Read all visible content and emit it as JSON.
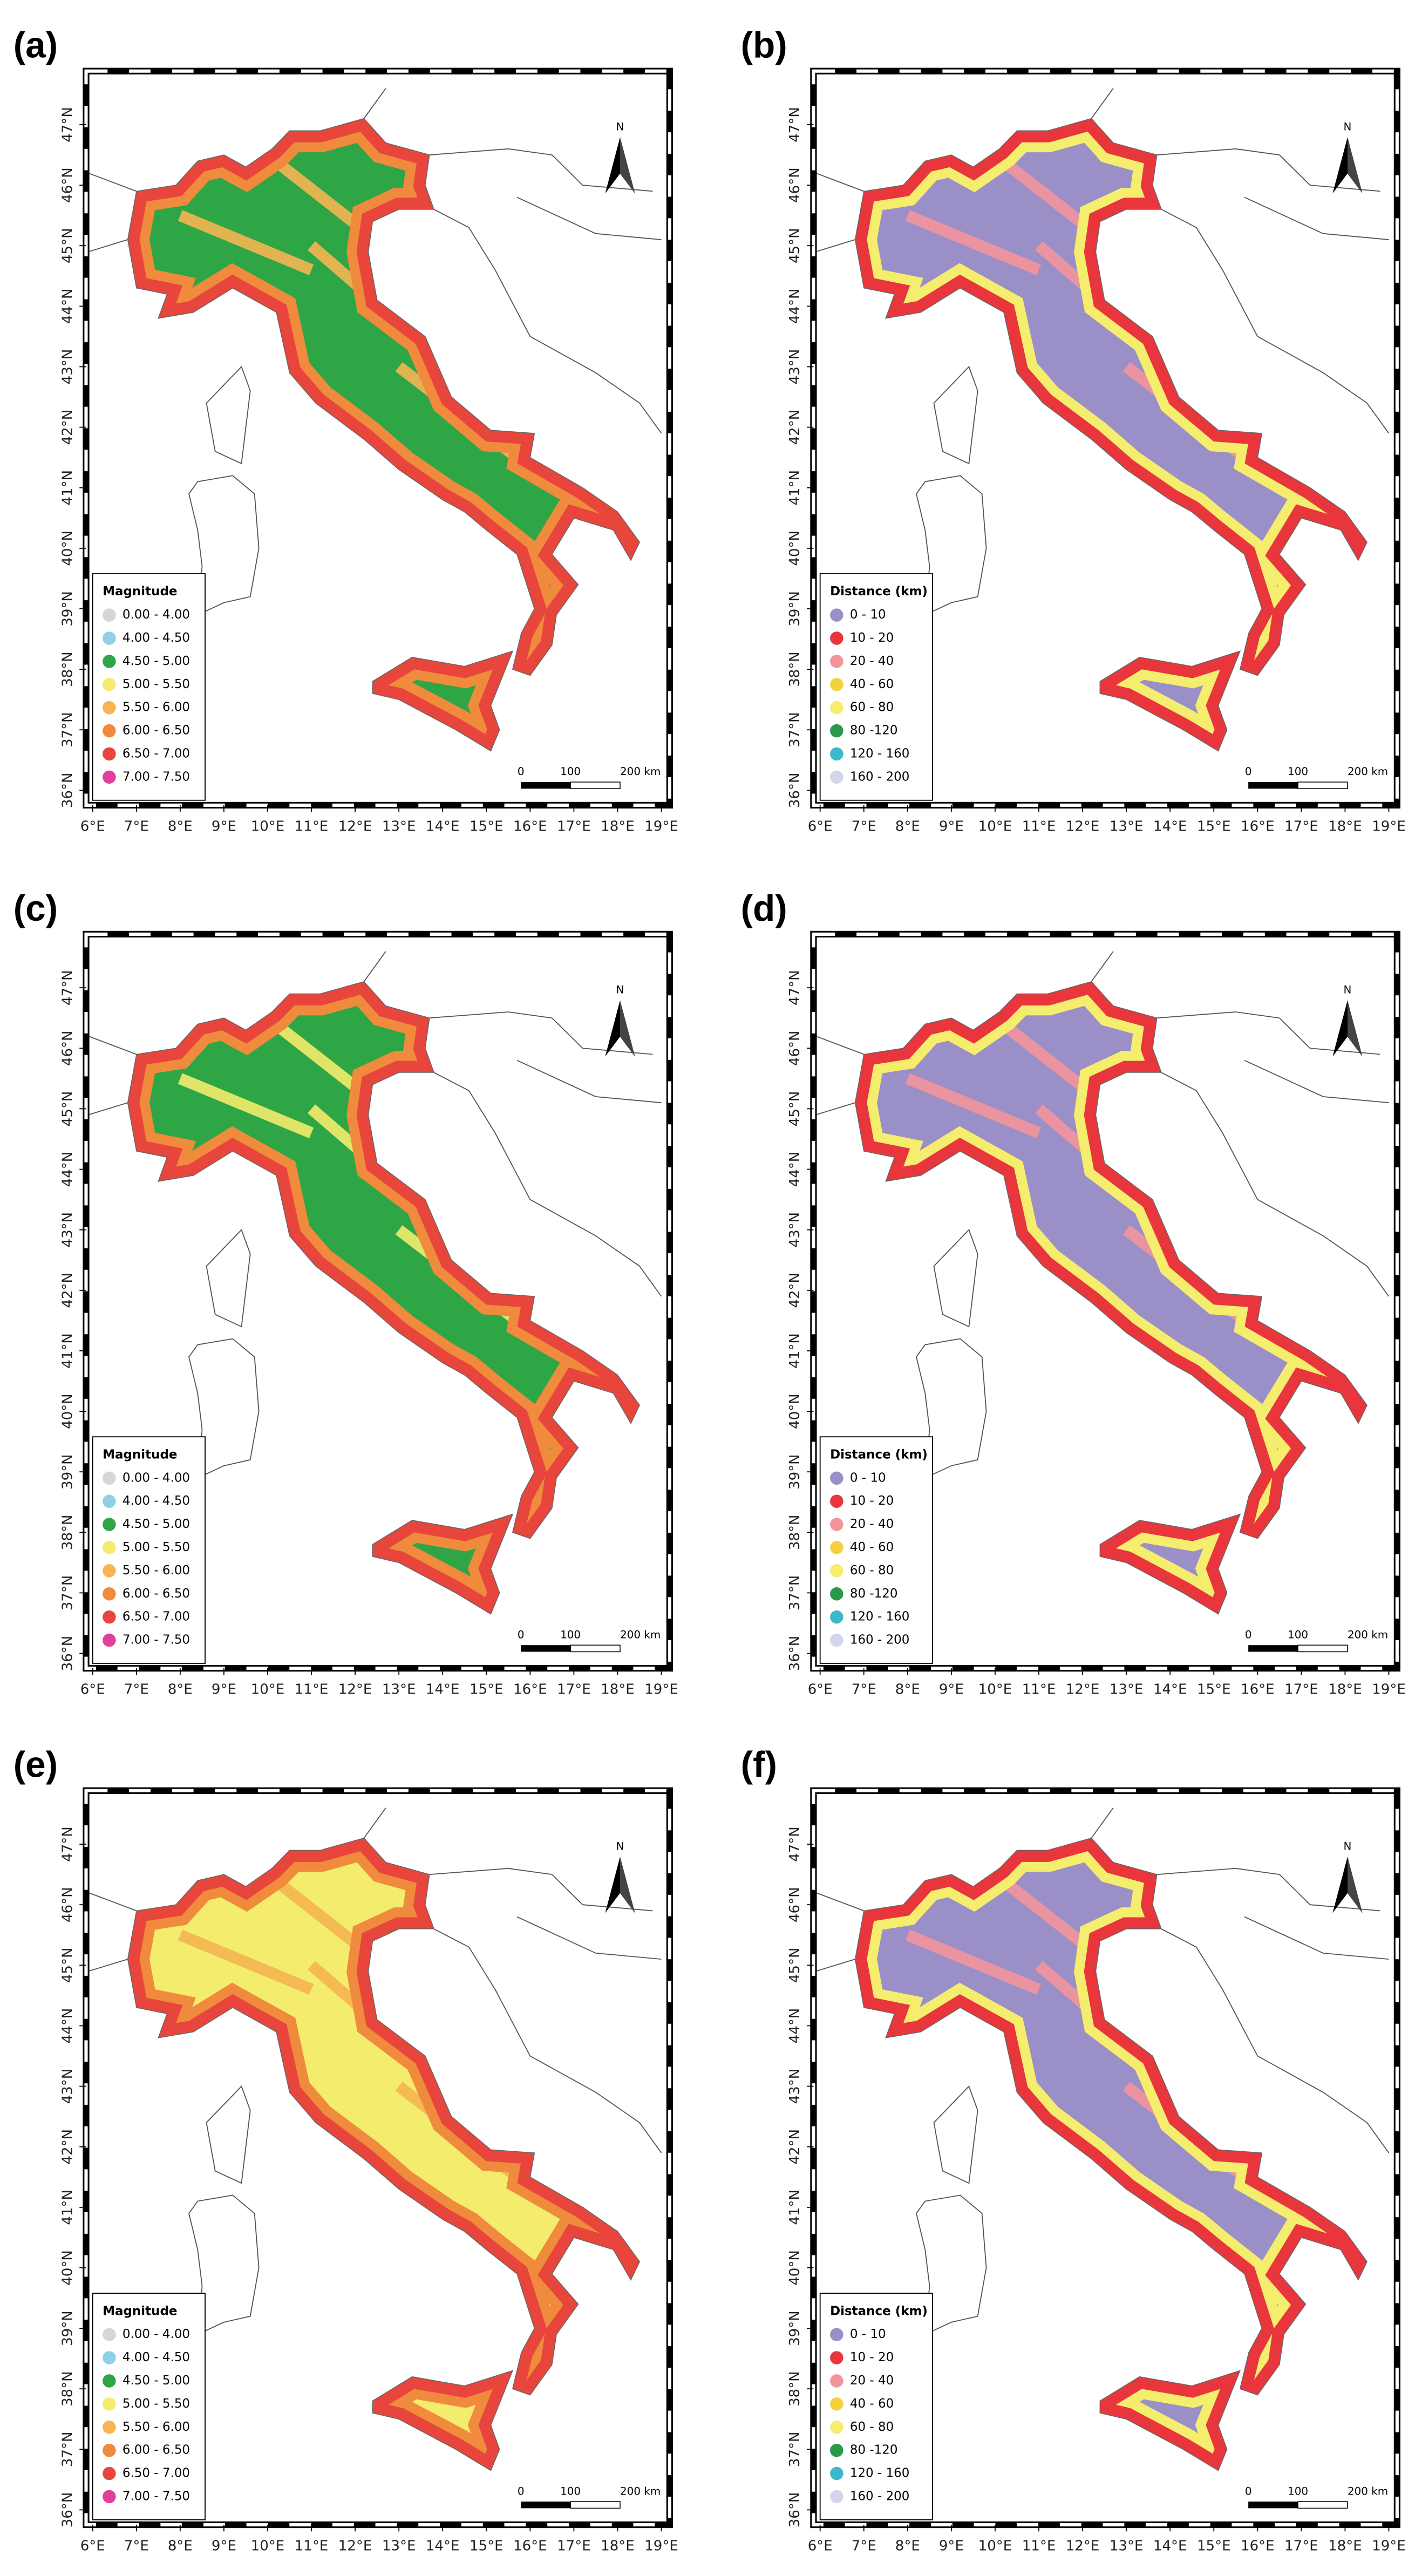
{
  "axes": {
    "lon_ticks": [
      {
        "value": 6,
        "label": "6°E"
      },
      {
        "value": 7,
        "label": "7°E"
      },
      {
        "value": 8,
        "label": "8°E"
      },
      {
        "value": 9,
        "label": "9°E"
      },
      {
        "value": 10,
        "label": "10°E"
      },
      {
        "value": 11,
        "label": "11°E"
      },
      {
        "value": 12,
        "label": "12°E"
      },
      {
        "value": 13,
        "label": "13°E"
      },
      {
        "value": 14,
        "label": "14°E"
      },
      {
        "value": 15,
        "label": "15°E"
      },
      {
        "value": 16,
        "label": "16°E"
      },
      {
        "value": 17,
        "label": "17°E"
      },
      {
        "value": 18,
        "label": "18°E"
      },
      {
        "value": 19,
        "label": "19°E"
      }
    ],
    "lat_ticks": [
      {
        "value": 36,
        "label": "36°N"
      },
      {
        "value": 37,
        "label": "37°N"
      },
      {
        "value": 38,
        "label": "38°N"
      },
      {
        "value": 39,
        "label": "39°N"
      },
      {
        "value": 40,
        "label": "40°N"
      },
      {
        "value": 41,
        "label": "41°N"
      },
      {
        "value": 42,
        "label": "42°N"
      },
      {
        "value": 43,
        "label": "43°N"
      },
      {
        "value": 44,
        "label": "44°N"
      },
      {
        "value": 45,
        "label": "45°N"
      },
      {
        "value": 46,
        "label": "46°N"
      },
      {
        "value": 47,
        "label": "47°N"
      }
    ]
  },
  "north": "N",
  "scale_bar": [
    0,
    100,
    {
      "value": 200,
      "label": "200 km"
    }
  ],
  "panels": [
    {
      "label": "(a)",
      "legend": {
        "title": "Magnitude",
        "items": [
          {
            "label": "0.00 - 4.00",
            "color": "#d6d6d6"
          },
          {
            "label": "4.00 - 4.50",
            "color": "#8fd0e6"
          },
          {
            "label": "4.50 - 5.00",
            "color": "#2ea645"
          },
          {
            "label": "5.00 - 5.50",
            "color": "#f3ec6c"
          },
          {
            "label": "5.50 - 6.00",
            "color": "#f6b552"
          },
          {
            "label": "6.00 - 6.50",
            "color": "#f08a3c"
          },
          {
            "label": "6.50 - 7.00",
            "color": "#e8453c"
          },
          {
            "label": "7.00 - 7.50",
            "color": "#e0409a"
          }
        ]
      }
    },
    {
      "label": "(b)",
      "legend": {
        "title": "Distance (km)",
        "items": [
          {
            "label": "0 - 10",
            "color": "#9b8fc7"
          },
          {
            "label": "10 - 20",
            "color": "#e8363c"
          },
          {
            "label": "20 - 40",
            "color": "#f2959b"
          },
          {
            "label": "40 - 60",
            "color": "#f3d23e"
          },
          {
            "label": "60 - 80",
            "color": "#f4ed6e"
          },
          {
            "label": "80 -120",
            "color": "#2a9a4a"
          },
          {
            "label": "120 - 160",
            "color": "#3cb8cc"
          },
          {
            "label": "160 - 200",
            "color": "#d3d6ea"
          }
        ]
      }
    },
    {
      "label": "(c)",
      "legend": {
        "title": "Magnitude",
        "items": [
          {
            "label": "0.00 - 4.00",
            "color": "#d6d6d6"
          },
          {
            "label": "4.00 - 4.50",
            "color": "#8fd0e6"
          },
          {
            "label": "4.50 - 5.00",
            "color": "#2ea645"
          },
          {
            "label": "5.00 - 5.50",
            "color": "#f3ec6c"
          },
          {
            "label": "5.50 - 6.00",
            "color": "#f6b552"
          },
          {
            "label": "6.00 - 6.50",
            "color": "#f08a3c"
          },
          {
            "label": "6.50 - 7.00",
            "color": "#e8453c"
          },
          {
            "label": "7.00 - 7.50",
            "color": "#e0409a"
          }
        ]
      }
    },
    {
      "label": "(d)",
      "legend": {
        "title": "Distance (km)",
        "items": [
          {
            "label": "0 - 10",
            "color": "#9b8fc7"
          },
          {
            "label": "10 - 20",
            "color": "#e8363c"
          },
          {
            "label": "20 - 40",
            "color": "#f2959b"
          },
          {
            "label": "40 - 60",
            "color": "#f3d23e"
          },
          {
            "label": "60 - 80",
            "color": "#f4ed6e"
          },
          {
            "label": "80 -120",
            "color": "#2a9a4a"
          },
          {
            "label": "120 - 160",
            "color": "#3cb8cc"
          },
          {
            "label": "160 - 200",
            "color": "#d3d6ea"
          }
        ]
      }
    },
    {
      "label": "(e)",
      "legend": {
        "title": "Magnitude",
        "items": [
          {
            "label": "0.00 - 4.00",
            "color": "#d6d6d6"
          },
          {
            "label": "4.00 - 4.50",
            "color": "#8fd0e6"
          },
          {
            "label": "4.50 - 5.00",
            "color": "#2ea645"
          },
          {
            "label": "5.00 - 5.50",
            "color": "#f3ec6c"
          },
          {
            "label": "5.50 - 6.00",
            "color": "#f6b552"
          },
          {
            "label": "6.00 - 6.50",
            "color": "#f08a3c"
          },
          {
            "label": "6.50 - 7.00",
            "color": "#e8453c"
          },
          {
            "label": "7.00 - 7.50",
            "color": "#e0409a"
          }
        ]
      }
    },
    {
      "label": "(f)",
      "legend": {
        "title": "Distance (km)",
        "items": [
          {
            "label": "0 - 10",
            "color": "#9b8fc7"
          },
          {
            "label": "10 - 20",
            "color": "#e8363c"
          },
          {
            "label": "20 - 40",
            "color": "#f2959b"
          },
          {
            "label": "40 - 60",
            "color": "#f3d23e"
          },
          {
            "label": "60 - 80",
            "color": "#f4ed6e"
          },
          {
            "label": "80 -120",
            "color": "#2a9a4a"
          },
          {
            "label": "120 - 160",
            "color": "#3cb8cc"
          },
          {
            "label": "160 - 200",
            "color": "#d3d6ea"
          }
        ]
      }
    }
  ]
}
